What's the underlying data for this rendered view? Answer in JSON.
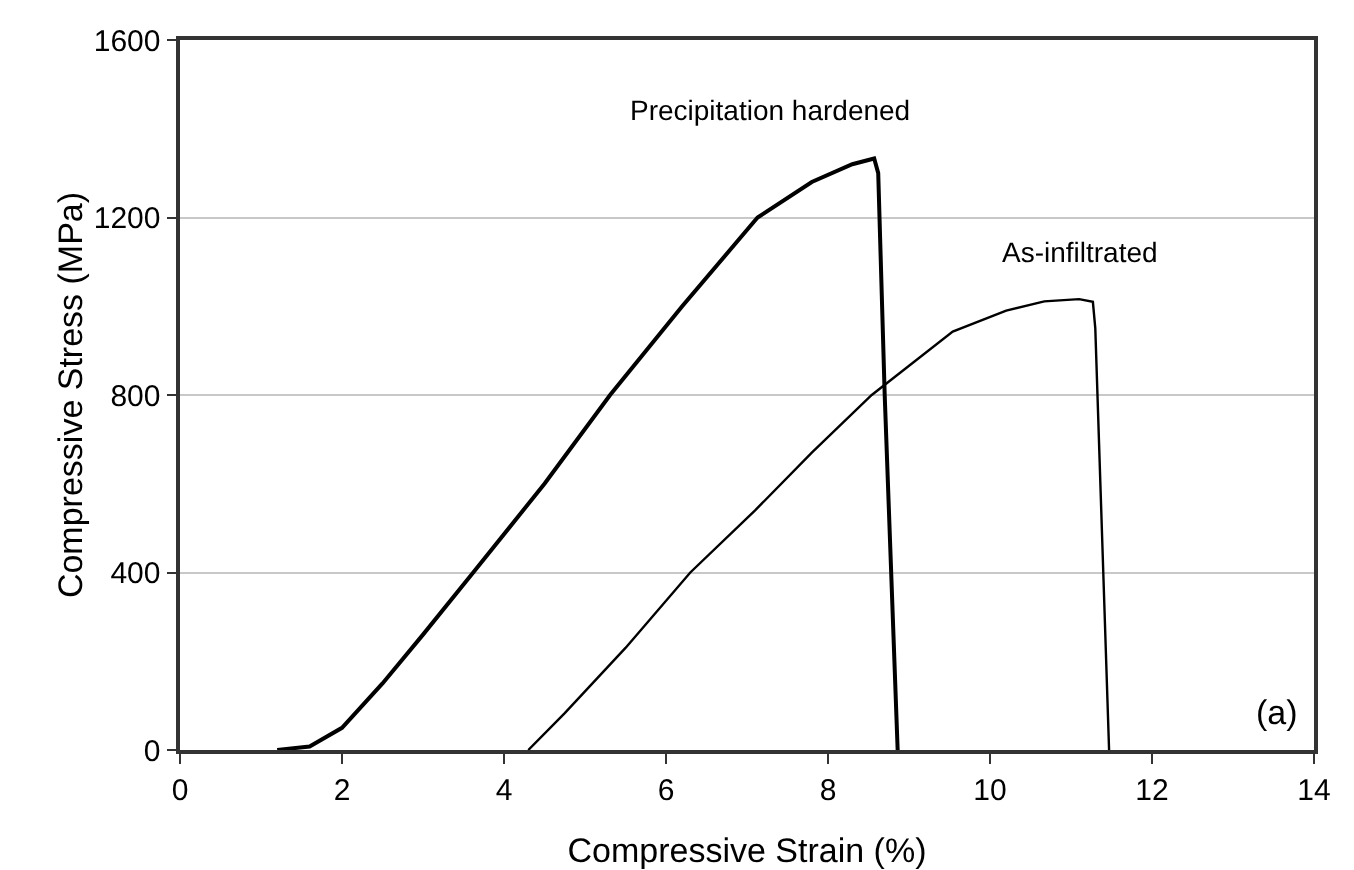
{
  "chart_data": {
    "type": "line",
    "xlabel": "Compressive Strain (%)",
    "ylabel": "Compressive Stress (MPa)",
    "xlim": [
      0,
      14
    ],
    "xticks": [
      0,
      2,
      4,
      6,
      8,
      10,
      12,
      14
    ],
    "ylim": [
      0,
      1600
    ],
    "yticks": [
      0,
      400,
      800,
      1200,
      1600
    ],
    "grid": "y",
    "legend": false,
    "marker": "none",
    "line_style": "solid",
    "annotations": [
      "(a)"
    ],
    "series": [
      {
        "name": "Precipitation hardened",
        "color": "#000000",
        "x": [
          1.2,
          1.6,
          2.0,
          2.5,
          3.0,
          3.62,
          4.5,
          5.31,
          6.2,
          7.13,
          7.8,
          8.3,
          8.57,
          8.62,
          8.7,
          8.86
        ],
        "values": [
          0,
          8,
          50,
          150,
          260,
          400,
          600,
          800,
          1000,
          1200,
          1280,
          1320,
          1333,
          1300,
          800,
          0
        ]
      },
      {
        "name": "As-infiltrated",
        "color": "#000000",
        "x": [
          4.3,
          4.75,
          5.5,
          6.3,
          7.1,
          7.8,
          8.54,
          9.54,
          10.2,
          10.67,
          11.1,
          11.27,
          11.3,
          11.47
        ],
        "values": [
          0,
          83,
          230,
          400,
          540,
          670,
          800,
          943,
          990,
          1011,
          1016,
          1010,
          950,
          0
        ]
      }
    ]
  }
}
